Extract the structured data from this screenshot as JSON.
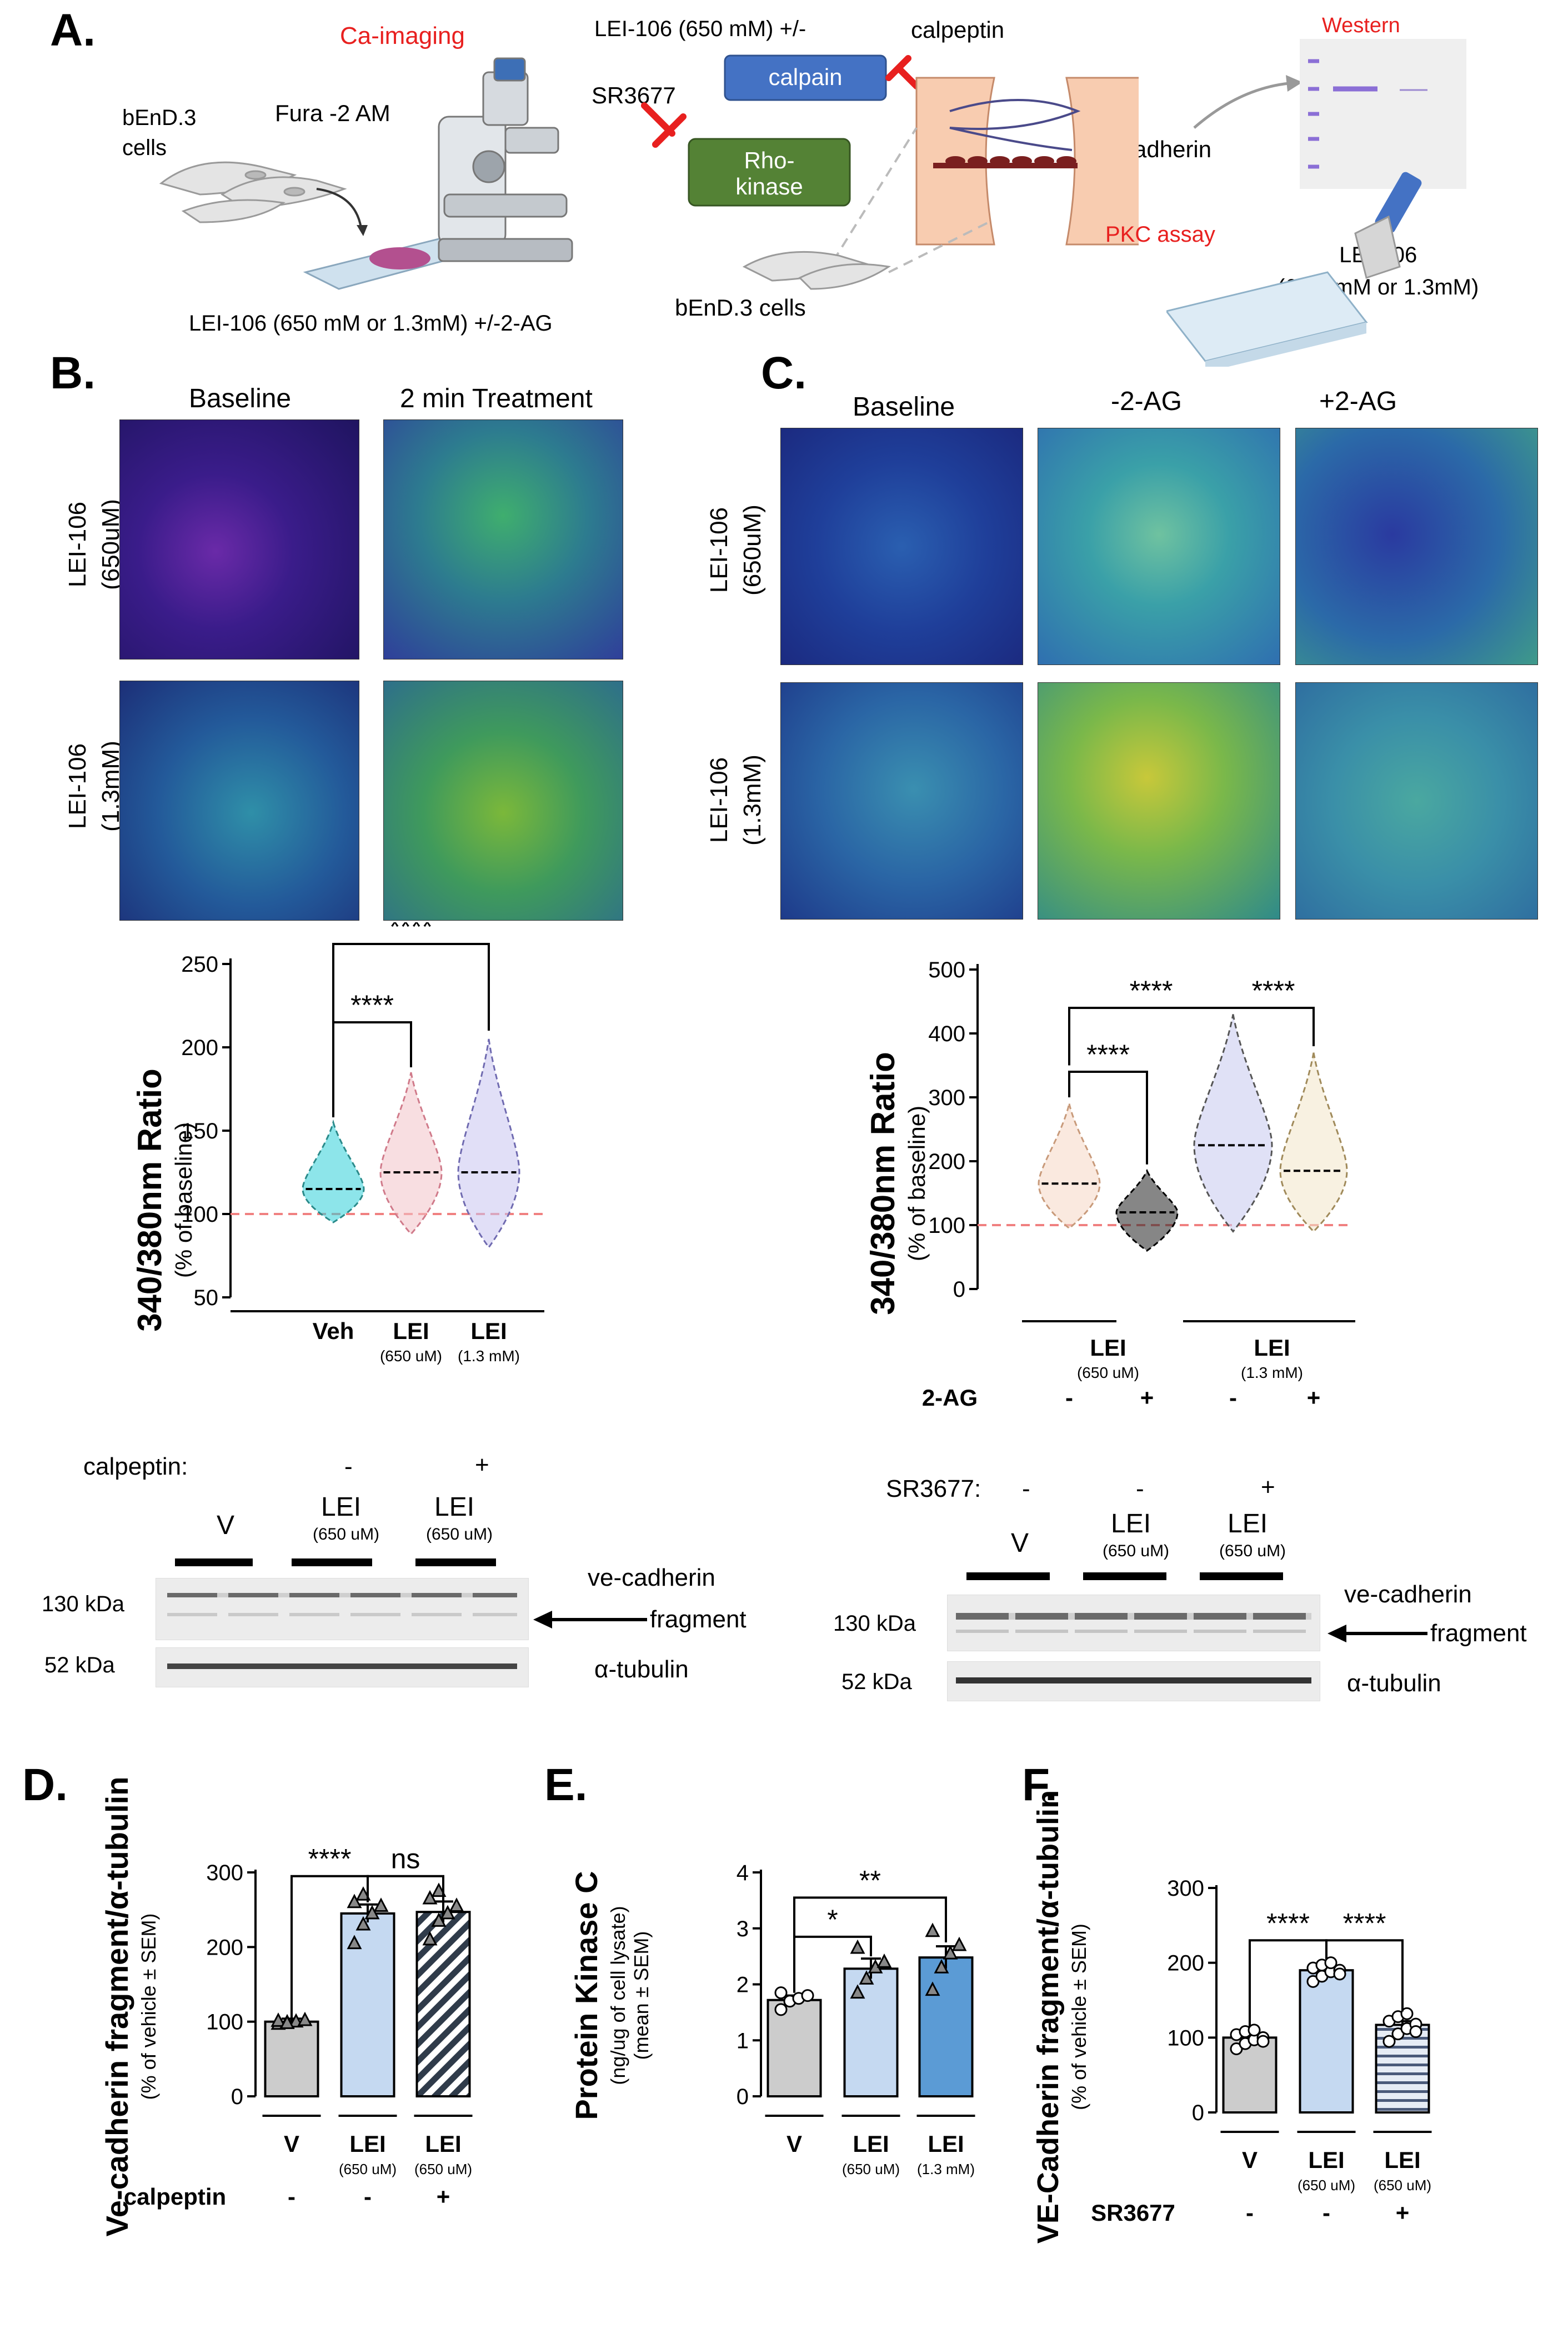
{
  "panelA": {
    "letter": "A.",
    "ca_imaging": "Ca-imaging",
    "cells": "bEnD.3\ncells",
    "fura": "Fura -2 AM",
    "lei_2ag": "LEI-106 (650 mM or 1.3mM) +/-2-AG",
    "lei_calpain": "LEI-106 (650 mM) +/-",
    "calpeptin": "calpeptin",
    "calpain": "calpain",
    "sr": "SR3677",
    "rho": "Rho-\nkinase",
    "vecad": "VE-cadherin",
    "cells2": "bEnD.3 cells",
    "western": "Western",
    "pkc": "PKC assay",
    "lei_pkc": "LEI-106\n(650  mM or 1.3mM)"
  },
  "panelB": {
    "letter": "B.",
    "col_baseline": "Baseline",
    "col_treat": "2 min Treatment",
    "row1": "LEI-106\n(650uM)",
    "row2": "LEI-106\n(1.3mM)"
  },
  "panelC": {
    "letter": "C.",
    "col_baseline": "Baseline",
    "col_minus": "-2-AG",
    "col_plus": "+2-AG",
    "row1": "LEI-106\n(650uM)",
    "row2": "LEI-106\n(1.3mM)"
  },
  "violinB": {
    "ylabel": "340/380nm Ratio",
    "ysub": "(% of baseline)",
    "yticks": [
      "50",
      "100",
      "150",
      "200",
      "250"
    ],
    "cats": [
      {
        "main": "Veh",
        "sub": ""
      },
      {
        "main": "LEI",
        "sub": "(650 uM)"
      },
      {
        "main": "LEI",
        "sub": "(1.3 mM)"
      }
    ],
    "sig1": "****",
    "sig2": "****"
  },
  "violinC": {
    "ylabel": "340/380nm Ratio",
    "ysub": "(% of baseline)",
    "yticks": [
      "0",
      "100",
      "200",
      "300",
      "400",
      "500"
    ],
    "group1": "LEI",
    "group1sub": "(650 uM)",
    "group2": "LEI",
    "group2sub": "(1.3 mM)",
    "ag_label": "2-AG",
    "signs": [
      "-",
      "+",
      "-",
      "+"
    ],
    "sig1": "****",
    "sig2": "****",
    "sig3": "****"
  },
  "westernLeft": {
    "treat_label": "calpeptin:",
    "signs": [
      "-",
      "-",
      "+"
    ],
    "lanes": [
      {
        "main": "V",
        "sub": ""
      },
      {
        "main": "LEI",
        "sub": "(650 uM)"
      },
      {
        "main": "LEI",
        "sub": "(650 uM)"
      }
    ],
    "kda1": "130 kDa",
    "kda2": "52 kDa",
    "band1": "ve-cadherin",
    "band1b": "fragment",
    "band2": "α-tubulin"
  },
  "westernRight": {
    "treat_label": "SR3677:",
    "signs": [
      "-",
      "-",
      "+"
    ],
    "lanes": [
      {
        "main": "V",
        "sub": ""
      },
      {
        "main": "LEI",
        "sub": "(650 uM)"
      },
      {
        "main": "LEI",
        "sub": "(650 uM)"
      }
    ],
    "kda1": "130 kDa",
    "kda2": "52 kDa",
    "band1": "ve-cadherin",
    "band1b": "fragment",
    "band2": "α-tubulin"
  },
  "chart_data": [
    {
      "panel": "B",
      "type": "violin",
      "categories": [
        "Veh",
        "LEI (650 uM)",
        "LEI (1.3 mM)"
      ],
      "medians": [
        115,
        125,
        125
      ],
      "ranges": [
        [
          95,
          155
        ],
        [
          88,
          185
        ],
        [
          80,
          205
        ]
      ],
      "ylim": [
        50,
        250
      ],
      "reference_line": 100,
      "comparisons": [
        {
          "from": "Veh",
          "to": "LEI (650 uM)",
          "label": "****"
        },
        {
          "from": "Veh",
          "to": "LEI (1.3 mM)",
          "label": "****"
        }
      ]
    },
    {
      "panel": "C",
      "type": "violin",
      "categories": [
        "LEI (650 uM) -2-AG",
        "LEI (650 uM) +2-AG",
        "LEI (1.3 mM) -2-AG",
        "LEI (1.3 mM) +2-AG"
      ],
      "medians": [
        165,
        120,
        225,
        185
      ],
      "ranges": [
        [
          95,
          290
        ],
        [
          60,
          185
        ],
        [
          90,
          430
        ],
        [
          90,
          370
        ]
      ],
      "ylim": [
        0,
        500
      ],
      "reference_line": 100,
      "comparisons": [
        {
          "from": "LEI (650 uM) -2-AG",
          "to": "LEI (650 uM) +2-AG",
          "label": "****"
        },
        {
          "from": "LEI (650 uM) -2-AG",
          "to": "LEI (1.3 mM) -2-AG",
          "label": "****"
        },
        {
          "from": "LEI (1.3 mM) -2-AG",
          "to": "LEI (1.3 mM) +2-AG",
          "label": "****"
        }
      ]
    },
    {
      "panel": "D",
      "type": "bar",
      "title": "D.",
      "ylabel": "Ve-cadherin fragment/α-tubulin",
      "ysub": "(% of vehicle ± SEM)",
      "ylim": [
        0,
        300
      ],
      "yticks": [
        0,
        100,
        200,
        300
      ],
      "categories": [
        {
          "main": "V",
          "sub": ""
        },
        {
          "main": "LEI",
          "sub": "(650 uM)"
        },
        {
          "main": "LEI",
          "sub": "(650 uM)"
        }
      ],
      "values": [
        100,
        245,
        247
      ],
      "errors": [
        4,
        12,
        14
      ],
      "points": [
        [
          97,
          99,
          100,
          102,
          101,
          98
        ],
        [
          205,
          230,
          245,
          255,
          260,
          270
        ],
        [
          210,
          235,
          245,
          255,
          265,
          275
        ]
      ],
      "marker": "triangle",
      "fills": [
        "#cccccc",
        "#c5d9f1",
        "hatch-diag"
      ],
      "treat_label": "calpeptin",
      "signs": [
        "-",
        "-",
        "+"
      ],
      "comparisons": [
        {
          "from": 0,
          "to": 1,
          "label": "****"
        },
        {
          "from": 1,
          "to": 2,
          "label": "ns"
        }
      ]
    },
    {
      "panel": "E",
      "type": "bar",
      "title": "E.",
      "ylabel": "Protein Kinase C",
      "ysub1": "(ng/ug of cell lysate)",
      "ysub2": "(mean ± SEM)",
      "ylim": [
        0,
        4
      ],
      "yticks": [
        0,
        1,
        2,
        3,
        4
      ],
      "categories": [
        {
          "main": "V",
          "sub": ""
        },
        {
          "main": "LEI",
          "sub": "(650 uM)"
        },
        {
          "main": "LEI",
          "sub": "(1.3 mM)"
        }
      ],
      "values": [
        1.72,
        2.28,
        2.48
      ],
      "errors": [
        0.08,
        0.18,
        0.2
      ],
      "points": [
        [
          1.55,
          1.7,
          1.75,
          1.8,
          1.85
        ],
        [
          1.85,
          2.1,
          2.3,
          2.4,
          2.65
        ],
        [
          1.9,
          2.3,
          2.55,
          2.7,
          2.95
        ]
      ],
      "fills": [
        "#cccccc",
        "#c5d9f1",
        "#5b9bd5"
      ],
      "comparisons": [
        {
          "from": 0,
          "to": 1,
          "label": "*"
        },
        {
          "from": 0,
          "to": 2,
          "label": "**"
        }
      ]
    },
    {
      "panel": "F",
      "type": "bar",
      "title": "F.",
      "ylabel": "VE-Cadherin fragment/α-tubulin",
      "ysub": "(% of vehicle ± SEM)",
      "ylim": [
        0,
        300
      ],
      "yticks": [
        0,
        100,
        200,
        300
      ],
      "categories": [
        {
          "main": "V",
          "sub": ""
        },
        {
          "main": "LEI",
          "sub": "(650 uM)"
        },
        {
          "main": "LEI",
          "sub": "(650 uM)"
        }
      ],
      "values": [
        100,
        190,
        117
      ],
      "errors": [
        4,
        4,
        5
      ],
      "points": [
        [
          85,
          92,
          97,
          100,
          104,
          108,
          110,
          95
        ],
        [
          175,
          182,
          188,
          190,
          193,
          197,
          200,
          185
        ],
        [
          95,
          105,
          112,
          118,
          122,
          128,
          132,
          108
        ]
      ],
      "fills": [
        "#cccccc",
        "#c5d9f1",
        "hatch-horiz"
      ],
      "treat_label": "SR3677",
      "signs": [
        "-",
        "-",
        "+"
      ],
      "comparisons": [
        {
          "from": 0,
          "to": 1,
          "label": "****"
        },
        {
          "from": 1,
          "to": 2,
          "label": "****"
        }
      ]
    }
  ]
}
